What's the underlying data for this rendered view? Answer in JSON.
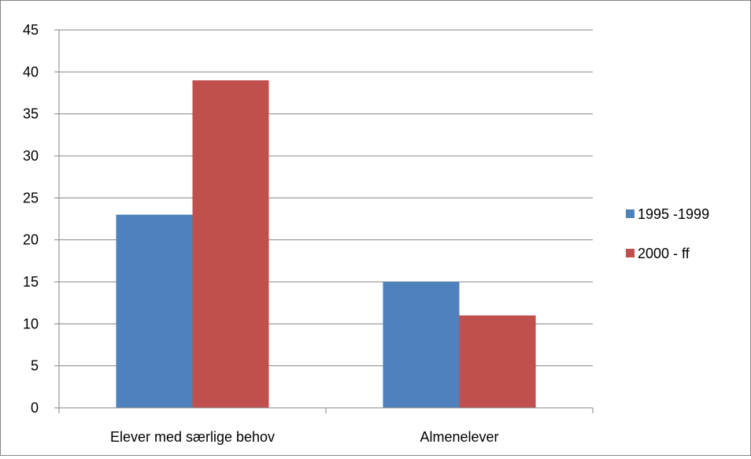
{
  "chart_data": {
    "type": "bar",
    "categories": [
      "Elever med særlige behov",
      "Almenelever"
    ],
    "series": [
      {
        "name": "1995 -1999",
        "values": [
          23,
          15
        ],
        "color": "#4F81BD"
      },
      {
        "name": "2000 - ff",
        "values": [
          39,
          11
        ],
        "color": "#C0504D"
      }
    ],
    "y_ticks": [
      "0",
      "5",
      "10",
      "15",
      "20",
      "25",
      "30",
      "35",
      "40",
      "45"
    ],
    "ylim": [
      0,
      45
    ],
    "grid": true,
    "legend_position": "right"
  }
}
